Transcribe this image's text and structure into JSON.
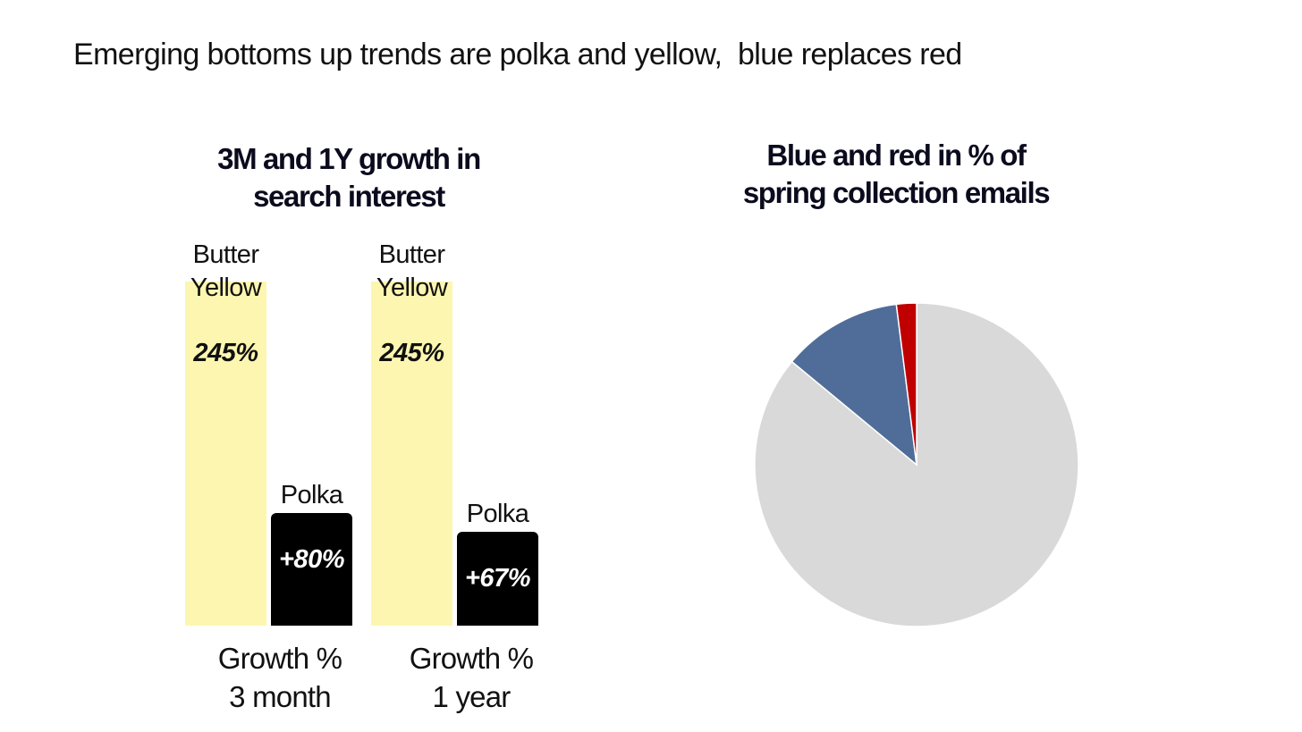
{
  "slide_title": "Emerging bottoms up trends are polka and yellow,  blue replaces red",
  "chart_data": [
    {
      "type": "bar",
      "title": [
        "3M and 1Y growth in",
        "search interest"
      ],
      "categories": [
        [
          "Growth %",
          "3 month"
        ],
        [
          "Growth %",
          "1 year"
        ]
      ],
      "series": [
        {
          "name": "Butter Yellow",
          "label_lines": [
            "Butter",
            "Yellow"
          ],
          "values": [
            245,
            245
          ],
          "value_labels": [
            "245%",
            "245%"
          ],
          "color": "#fdf6b0"
        },
        {
          "name": "Polka",
          "label_lines": [
            "Polka"
          ],
          "values": [
            80,
            67
          ],
          "value_labels": [
            "+80%",
            "+67%"
          ],
          "color": "#000000"
        }
      ],
      "ylim": [
        0,
        245
      ]
    },
    {
      "type": "pie",
      "title": [
        "Blue and red in % of",
        "spring collection emails"
      ],
      "slices": [
        {
          "value": 86,
          "color": "#d9d9d9"
        },
        {
          "value": 12,
          "color": "#4f6d98"
        },
        {
          "value": 2,
          "color": "#c00000"
        }
      ]
    }
  ]
}
